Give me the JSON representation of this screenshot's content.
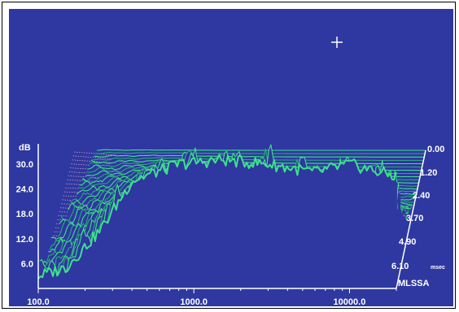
{
  "chart_data": {
    "type": "line",
    "subtype": "cumulative-spectral-decay-waterfall",
    "colors": {
      "background": "#2e38a0",
      "trace": "#3fe08c",
      "trace_dark": "#2aa874",
      "text": "#ffffff",
      "hatch": "#e9a9d6"
    },
    "y_axis": {
      "label": "dB",
      "ticks": [
        "30.0",
        "24.0",
        "18.0",
        "12.0",
        "6.0"
      ],
      "ylim": [
        0,
        36
      ]
    },
    "x_axis": {
      "scale": "log",
      "ticks": [
        "100.0",
        "1000.0",
        "10000.0"
      ],
      "xlim": [
        100,
        20000
      ]
    },
    "z_axis": {
      "unit": "msec",
      "ticks": [
        "0.00",
        "1.20",
        "2.40",
        "3.70",
        "4.90",
        "6.10"
      ]
    },
    "brand": "MLSSA",
    "slice_count": 42,
    "slice_interval_ms": 0.15,
    "front_response_db": [
      {
        "f": 100,
        "db": 3
      },
      {
        "f": 150,
        "db": 5
      },
      {
        "f": 250,
        "db": 14
      },
      {
        "f": 400,
        "db": 26
      },
      {
        "f": 800,
        "db": 30
      },
      {
        "f": 1500,
        "db": 31
      },
      {
        "f": 3000,
        "db": 30
      },
      {
        "f": 6000,
        "db": 28
      },
      {
        "f": 10000,
        "db": 30
      },
      {
        "f": 20000,
        "db": 27
      }
    ]
  }
}
